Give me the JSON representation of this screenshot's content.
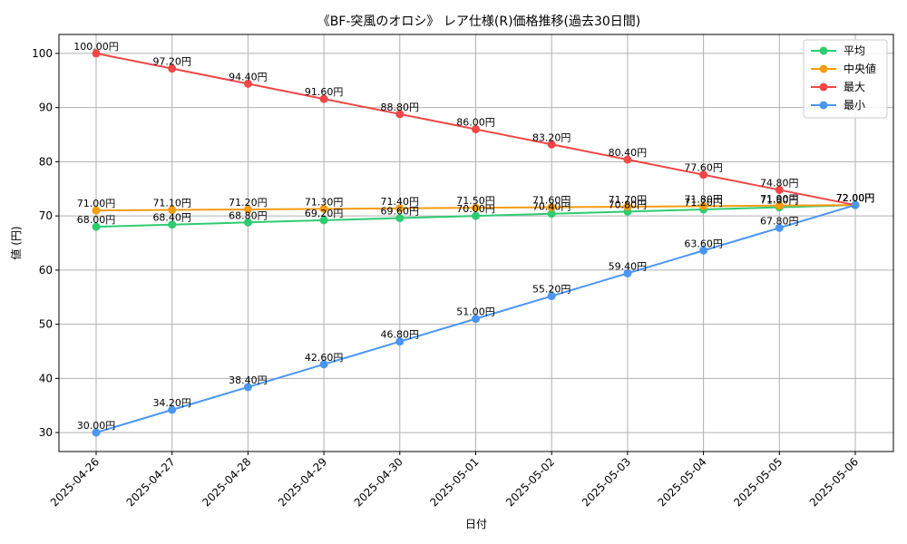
{
  "chart_data": {
    "type": "line",
    "title": "《BF-突風のオロシ》 レア仕様(R)価格推移(過去30日間)",
    "xlabel": "日付",
    "ylabel": "値 (円)",
    "ylim": [
      26.5,
      103.5
    ],
    "yticks": [
      30,
      40,
      50,
      60,
      70,
      80,
      90,
      100
    ],
    "grid": true,
    "legend_position": "top-right",
    "label_suffix": "円",
    "categories": [
      "2025-04-26",
      "2025-04-27",
      "2025-04-28",
      "2025-04-29",
      "2025-04-30",
      "2025-05-01",
      "2025-05-02",
      "2025-05-03",
      "2025-05-04",
      "2025-05-05",
      "2025-05-06"
    ],
    "series": [
      {
        "name": "平均",
        "color": "#2ecc71",
        "values": [
          68.0,
          68.4,
          68.8,
          69.2,
          69.6,
          70.0,
          70.4,
          70.8,
          71.2,
          71.6,
          72.0
        ]
      },
      {
        "name": "中央値",
        "color": "#f39c12",
        "values": [
          71.0,
          71.1,
          71.2,
          71.3,
          71.4,
          71.5,
          71.6,
          71.7,
          71.8,
          71.9,
          72.0
        ]
      },
      {
        "name": "最大",
        "color": "#f04747",
        "values": [
          100.0,
          97.2,
          94.4,
          91.6,
          88.8,
          86.0,
          83.2,
          80.4,
          77.6,
          74.8,
          72.0
        ]
      },
      {
        "name": "最小",
        "color": "#4a96f0",
        "values": [
          30.0,
          34.2,
          38.4,
          42.6,
          46.8,
          51.0,
          55.2,
          59.4,
          63.6,
          67.8,
          72.0
        ]
      }
    ]
  }
}
